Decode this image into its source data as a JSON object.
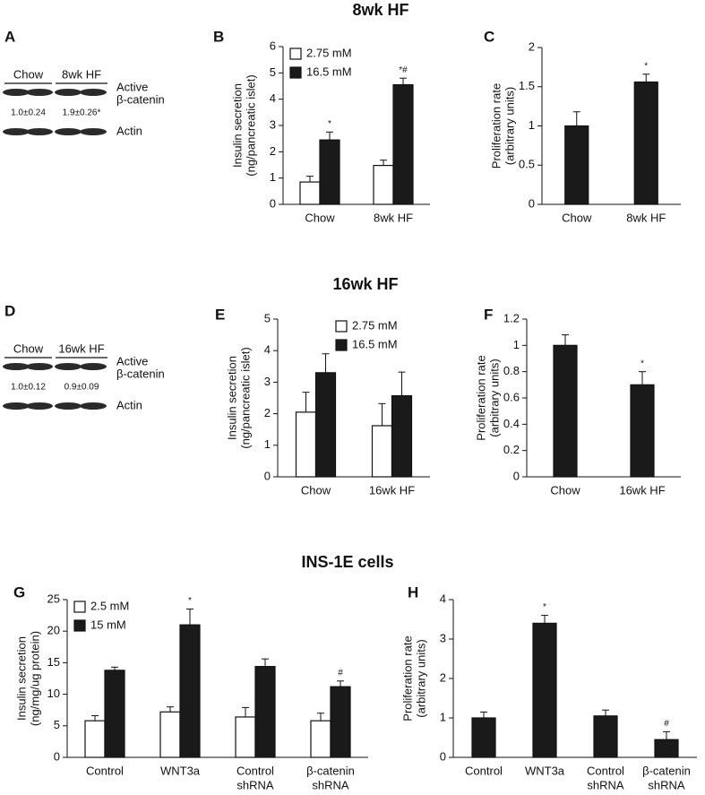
{
  "sections": [
    "8wk HF",
    "16wk HF",
    "INS-1E cells"
  ],
  "blots": [
    {
      "panel": "A",
      "groups": [
        "Chow",
        "8wk HF"
      ],
      "target": [
        "Active",
        "β-catenin"
      ],
      "quantities": [
        "1.0±0.24",
        "1.9±0.26*"
      ],
      "control": "Actin"
    },
    {
      "panel": "D",
      "groups": [
        "Chow",
        "16wk HF"
      ],
      "target": [
        "Active",
        "β-catenin"
      ],
      "quantities": [
        "1.0±0.12",
        "0.9±0.09"
      ],
      "control": "Actin"
    }
  ],
  "chart_data": [
    {
      "type": "bar",
      "panel": "B",
      "ylabel": [
        "Insulin secretion",
        "(ng/pancreatic islet)"
      ],
      "categories": [
        [
          "Chow"
        ],
        [
          "8wk HF"
        ]
      ],
      "ylim": [
        0,
        6
      ],
      "yticks": [
        0,
        1,
        2,
        3,
        4,
        5,
        6
      ],
      "legend": "upper left",
      "series": [
        {
          "name": "2.75 mM",
          "color": "#ffffff",
          "values": [
            0.85,
            1.48
          ],
          "errors": [
            0.22,
            0.2
          ],
          "annotations": [
            null,
            null
          ]
        },
        {
          "name": "16.5 mM",
          "color": "#1a1a1a",
          "values": [
            2.45,
            4.55
          ],
          "errors": [
            0.3,
            0.25
          ],
          "annotations": [
            "*",
            "*#"
          ]
        }
      ]
    },
    {
      "type": "bar",
      "panel": "C",
      "ylabel": [
        "Proliferation rate",
        "(arbitrary units)"
      ],
      "categories": [
        [
          "Chow"
        ],
        [
          "8wk HF"
        ]
      ],
      "ylim": [
        0,
        2
      ],
      "yticks": [
        0,
        0.5,
        1,
        1.5,
        2
      ],
      "color": "#1a1a1a",
      "values": [
        1.0,
        1.56
      ],
      "errors": [
        0.18,
        0.1
      ],
      "annotations": [
        null,
        "*"
      ]
    },
    {
      "type": "bar",
      "panel": "E",
      "ylabel": [
        "Insulin secretion",
        "(ng/pancreatic islet)"
      ],
      "categories": [
        [
          "Chow"
        ],
        [
          "16wk HF"
        ]
      ],
      "ylim": [
        0,
        5
      ],
      "yticks": [
        0,
        1,
        2,
        3,
        4,
        5
      ],
      "legend": "upper right",
      "series": [
        {
          "name": "2.75 mM",
          "color": "#ffffff",
          "values": [
            2.05,
            1.62
          ],
          "errors": [
            0.63,
            0.7
          ],
          "annotations": [
            null,
            null
          ]
        },
        {
          "name": "16.5 mM",
          "color": "#1a1a1a",
          "values": [
            3.3,
            2.57
          ],
          "errors": [
            0.6,
            0.75
          ],
          "annotations": [
            null,
            null
          ]
        }
      ]
    },
    {
      "type": "bar",
      "panel": "F",
      "ylabel": [
        "Proliferation rate",
        "(arbitrary units)"
      ],
      "categories": [
        [
          "Chow"
        ],
        [
          "16wk HF"
        ]
      ],
      "ylim": [
        0,
        1.2
      ],
      "yticks": [
        0,
        0.2,
        0.4,
        0.6,
        0.8,
        1,
        1.2
      ],
      "color": "#1a1a1a",
      "values": [
        1.0,
        0.7
      ],
      "errors": [
        0.08,
        0.1
      ],
      "annotations": [
        null,
        "*"
      ]
    },
    {
      "type": "bar",
      "panel": "G",
      "ylabel": [
        "Insulin secretion",
        "(ng/mg/ug protein)"
      ],
      "categories": [
        [
          "Control"
        ],
        [
          "WNT3a"
        ],
        [
          "Control",
          "shRNA"
        ],
        [
          "β-catenin",
          "shRNA"
        ]
      ],
      "ylim": [
        0,
        25
      ],
      "yticks": [
        0,
        5,
        10,
        15,
        20,
        25
      ],
      "legend": "upper left",
      "series": [
        {
          "name": "2.5 mM",
          "color": "#ffffff",
          "values": [
            5.8,
            7.2,
            6.4,
            5.8
          ],
          "errors": [
            0.8,
            0.8,
            1.5,
            1.2
          ],
          "annotations": [
            null,
            null,
            null,
            null
          ]
        },
        {
          "name": "15 mM",
          "color": "#1a1a1a",
          "values": [
            13.8,
            21,
            14.4,
            11.2
          ],
          "errors": [
            0.5,
            2.5,
            1.2,
            0.9
          ],
          "annotations": [
            null,
            "*",
            null,
            "#"
          ]
        }
      ]
    },
    {
      "type": "bar",
      "panel": "H",
      "ylabel": [
        "Proliferation rate",
        "(arbitrary units)"
      ],
      "categories": [
        [
          "Control"
        ],
        [
          "WNT3a"
        ],
        [
          "Control",
          "shRNA"
        ],
        [
          "β-catenin",
          "shRNA"
        ]
      ],
      "ylim": [
        0,
        4
      ],
      "yticks": [
        0,
        1,
        2,
        3,
        4
      ],
      "color": "#1a1a1a",
      "values": [
        1.0,
        3.4,
        1.05,
        0.45
      ],
      "errors": [
        0.15,
        0.2,
        0.15,
        0.2
      ],
      "annotations": [
        null,
        "*",
        null,
        "#"
      ]
    }
  ]
}
